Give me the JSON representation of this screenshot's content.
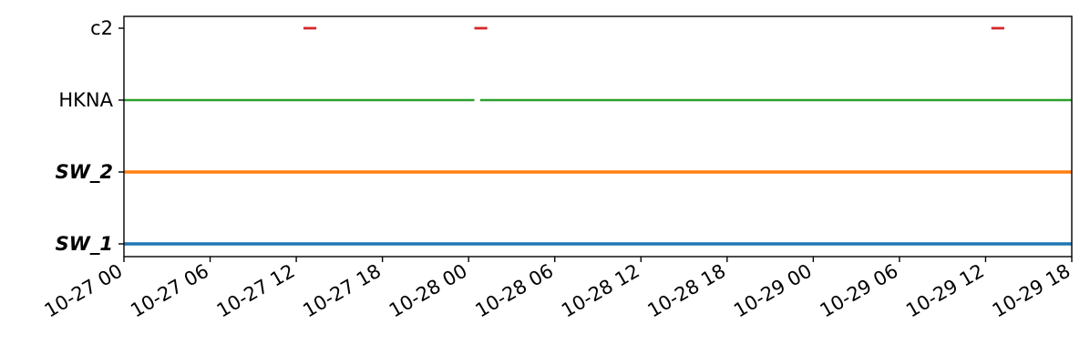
{
  "chart_data": {
    "type": "timeline",
    "x_axis": {
      "type": "datetime",
      "range": [
        "2023-10-27T00:00",
        "2023-10-29T18:00"
      ],
      "tick_labels": [
        "10-27 00",
        "10-27 06",
        "10-27 12",
        "10-27 18",
        "10-28 00",
        "10-28 06",
        "10-28 12",
        "10-28 18",
        "10-29 00",
        "10-29 06",
        "10-29 12",
        "10-29 18"
      ],
      "tick_hours": [
        0,
        6,
        12,
        18,
        24,
        30,
        36,
        42,
        48,
        54,
        60,
        66
      ]
    },
    "grid": false,
    "series": [
      {
        "name": "SW_1",
        "label_style": "bold-italic",
        "color": "#1f77b4",
        "segments": [
          [
            0,
            66
          ]
        ]
      },
      {
        "name": "SW_2",
        "label_style": "bold-italic",
        "color": "#ff7f0e",
        "segments": [
          [
            0,
            66
          ]
        ]
      },
      {
        "name": "HKNA",
        "label_style": "normal",
        "color": "#2ca02c",
        "segments": [
          [
            0,
            24.4
          ],
          [
            24.8,
            66
          ]
        ]
      },
      {
        "name": "c2",
        "label_style": "normal",
        "color": "#d62728",
        "segments": [
          [
            12.5,
            13.4
          ],
          [
            24.4,
            25.3
          ],
          [
            60.4,
            61.3
          ]
        ]
      }
    ]
  }
}
